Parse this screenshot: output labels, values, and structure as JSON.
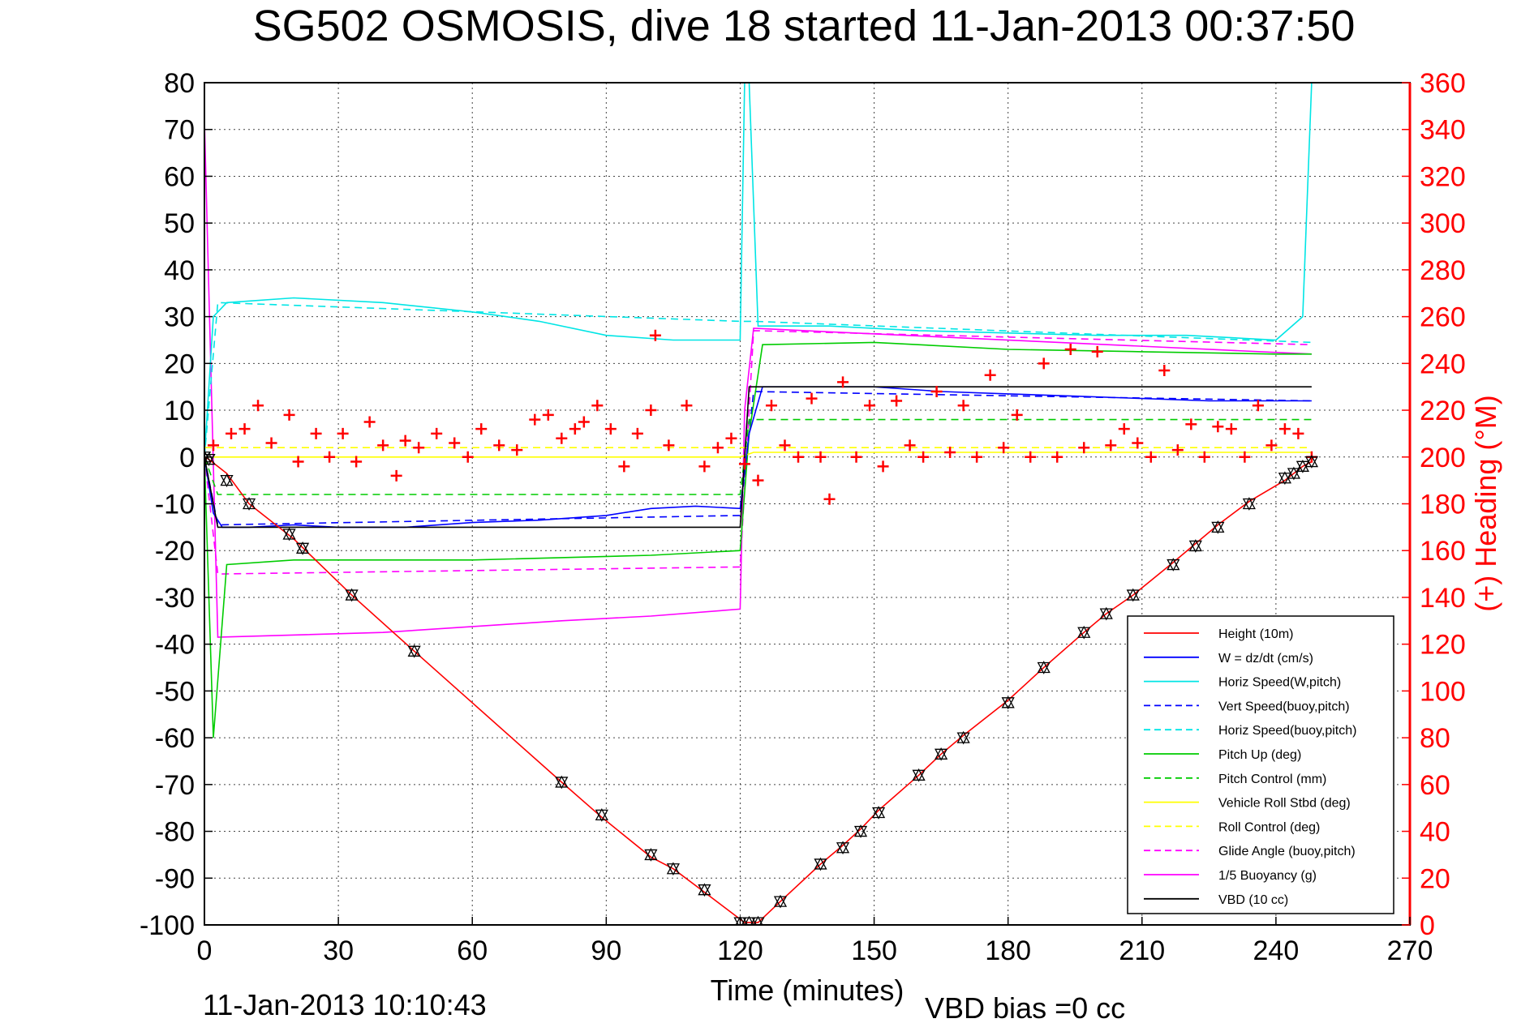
{
  "chart_data": {
    "type": "line",
    "title": "SG502 OSMOSIS, dive 18 started 11-Jan-2013 00:37:50",
    "xlabel": "Time (minutes)",
    "ylabel": "",
    "ylabel_right": "(+) Heading (°M)",
    "xlim": [
      0,
      270
    ],
    "ylim": [
      -100,
      80
    ],
    "ylim_right": [
      0,
      360
    ],
    "x_ticks": [
      "0",
      "30",
      "60",
      "90",
      "120",
      "150",
      "180",
      "210",
      "240",
      "270"
    ],
    "y_ticks": [
      "80",
      "70",
      "60",
      "50",
      "40",
      "30",
      "20",
      "10",
      "0",
      "-10",
      "-20",
      "-30",
      "-40",
      "-50",
      "-60",
      "-70",
      "-80",
      "-90",
      "-100"
    ],
    "y_ticks_right": [
      "360",
      "340",
      "320",
      "300",
      "280",
      "260",
      "240",
      "220",
      "200",
      "180",
      "160",
      "140",
      "120",
      "100",
      "80",
      "60",
      "40",
      "20",
      "0"
    ],
    "grid": true,
    "legend_position": "bottom-right",
    "footer_left": "11-Jan-2013 10:10:43",
    "footer_right": "VBD bias =0 cc",
    "series": [
      {
        "name": "Height (10m)",
        "color": "#ff0000",
        "style": "solid",
        "axis": "left",
        "x": [
          0,
          1,
          5,
          10,
          20,
          33,
          47,
          80,
          89,
          100,
          105,
          112,
          121,
          124,
          129,
          138,
          143,
          147,
          151,
          160,
          165,
          170,
          180,
          188,
          197,
          202,
          208,
          217,
          222,
          227,
          234,
          242,
          244,
          246,
          248
        ],
        "y": [
          0,
          -0.5,
          -3.5,
          -10,
          -17.5,
          -29.5,
          -41.5,
          -69.5,
          -77,
          -85.5,
          -88,
          -93,
          -99.5,
          -99.5,
          -95,
          -87,
          -83,
          -79.5,
          -75.5,
          -68,
          -63.5,
          -59.5,
          -52,
          -45,
          -37.5,
          -33.5,
          -29.5,
          -22.5,
          -18.5,
          -14.5,
          -9.5,
          -5,
          -3.5,
          -2,
          -1
        ]
      },
      {
        "name": "W = dz/dt (cm/s)",
        "color": "#0000ff",
        "style": "solid",
        "axis": "left",
        "x": [
          0,
          2,
          4,
          10,
          20,
          30,
          45,
          60,
          75,
          90,
          100,
          110,
          120,
          122,
          125,
          135,
          150,
          165,
          180,
          195,
          210,
          225,
          240,
          248
        ],
        "y": [
          0,
          -12,
          -15,
          -15,
          -14.5,
          -15,
          -15,
          -14,
          -13.5,
          -12.5,
          -11,
          -10.5,
          -11,
          5,
          15,
          15,
          15,
          14,
          13.5,
          13,
          12.5,
          12,
          12,
          12
        ]
      },
      {
        "name": "Horiz Speed(W,pitch)",
        "color": "#00e5e5",
        "style": "solid",
        "axis": "left",
        "x": [
          0,
          2,
          5,
          20,
          40,
          60,
          75,
          90,
          105,
          120,
          121,
          122,
          124,
          140,
          160,
          180,
          200,
          220,
          240,
          246,
          248
        ],
        "y": [
          0,
          30,
          33,
          34,
          33,
          31,
          29,
          26,
          25,
          25,
          80,
          80,
          28,
          28,
          27,
          26.5,
          26,
          26,
          25,
          30,
          80
        ]
      },
      {
        "name": "Vert Speed(buoy,pitch)",
        "color": "#0000ff",
        "style": "dashed",
        "axis": "left",
        "x": [
          0,
          3,
          120,
          123,
          248
        ],
        "y": [
          0,
          -14.5,
          -12.5,
          14,
          12
        ]
      },
      {
        "name": "Horiz Speed(buoy,pitch)",
        "color": "#00e5e5",
        "style": "dashed",
        "axis": "left",
        "x": [
          0,
          3,
          120,
          123,
          248
        ],
        "y": [
          0,
          33,
          29,
          29,
          24.5
        ]
      },
      {
        "name": "Pitch Up (deg)",
        "color": "#00cc00",
        "style": "solid",
        "axis": "left",
        "x": [
          0,
          2,
          5,
          20,
          60,
          100,
          120,
          122,
          125,
          150,
          180,
          210,
          240,
          248
        ],
        "y": [
          0,
          -60,
          -23,
          -22,
          -22,
          -21,
          -20,
          5,
          24,
          24.5,
          23,
          22.5,
          22,
          22
        ]
      },
      {
        "name": "Pitch Control (mm)",
        "color": "#00cc00",
        "style": "dashed",
        "axis": "left",
        "x": [
          0,
          3,
          120,
          122,
          248
        ],
        "y": [
          0,
          -8,
          -8,
          8,
          8
        ]
      },
      {
        "name": "Vehicle Roll Stbd (deg)",
        "color": "#ffff00",
        "style": "solid",
        "axis": "left",
        "x": [
          0,
          10,
          50,
          90,
          120,
          123,
          150,
          200,
          248
        ],
        "y": [
          0,
          0,
          0,
          0,
          0,
          1,
          1,
          1,
          1
        ]
      },
      {
        "name": "Roll Control (deg)",
        "color": "#ffff00",
        "style": "dashed",
        "axis": "left",
        "x": [
          0,
          248
        ],
        "y": [
          2,
          2
        ]
      },
      {
        "name": "Glide Angle (buoy,pitch)",
        "color": "#ff00ff",
        "style": "dashed",
        "axis": "left",
        "x": [
          0,
          3,
          120,
          123,
          248
        ],
        "y": [
          0,
          -25,
          -23.5,
          27,
          24
        ]
      },
      {
        "name": "1/5 Buoyancy (g)",
        "color": "#ff00ff",
        "style": "solid",
        "axis": "left",
        "x": [
          0,
          3,
          40,
          80,
          100,
          120,
          121,
          123,
          248
        ],
        "y": [
          72,
          -38.5,
          -37.5,
          -35,
          -34,
          -32.5,
          10,
          27.5,
          22
        ]
      },
      {
        "name": "VBD (10 cc)",
        "color": "#000000",
        "style": "solid",
        "axis": "left",
        "x": [
          0,
          3,
          120,
          122,
          248
        ],
        "y": [
          0,
          -15,
          -15,
          15,
          15
        ]
      },
      {
        "name": "Heading",
        "color": "#ff0000",
        "style": "plus-markers",
        "axis": "right",
        "x": [
          2,
          6,
          9,
          12,
          15,
          19,
          21,
          25,
          28,
          31,
          34,
          37,
          40,
          43,
          45,
          48,
          52,
          56,
          59,
          62,
          66,
          70,
          74,
          77,
          80,
          83,
          85,
          88,
          91,
          94,
          97,
          100,
          101,
          104,
          108,
          112,
          115,
          118,
          121,
          124,
          127,
          130,
          133,
          136,
          138,
          140,
          143,
          146,
          149,
          152,
          155,
          158,
          161,
          164,
          167,
          170,
          173,
          176,
          179,
          182,
          185,
          188,
          191,
          194,
          197,
          200,
          203,
          206,
          209,
          212,
          215,
          218,
          221,
          224,
          227,
          230,
          233,
          236,
          239,
          242,
          245,
          248
        ],
        "y": [
          205,
          210,
          212,
          222,
          206,
          218,
          198,
          210,
          200,
          210,
          198,
          215,
          205,
          192,
          207,
          204,
          210,
          206,
          200,
          212,
          205,
          203,
          216,
          218,
          208,
          212,
          215,
          222,
          212,
          196,
          210,
          220,
          252,
          205,
          222,
          196,
          204,
          208,
          197,
          190,
          222,
          205,
          200,
          225,
          200,
          182,
          232,
          200,
          222,
          196,
          224,
          205,
          200,
          228,
          202,
          222,
          200,
          235,
          204,
          218,
          200,
          240,
          200,
          246,
          204,
          245,
          205,
          212,
          206,
          200,
          237,
          203,
          214,
          200,
          213,
          212,
          200,
          222,
          205,
          212,
          210,
          200
        ]
      },
      {
        "name": "Height markers",
        "color": "#000000",
        "style": "triangle-markers",
        "axis": "left",
        "x": [
          0,
          1,
          5,
          10,
          19,
          22,
          33,
          47,
          80,
          89,
          100,
          105,
          112,
          120,
          122,
          124,
          129,
          138,
          143,
          147,
          151,
          160,
          165,
          170,
          180,
          188,
          197,
          202,
          208,
          217,
          222,
          227,
          234,
          242,
          244,
          246,
          248
        ],
        "y": [
          0,
          -0.5,
          -5,
          -10,
          -16.5,
          -19.5,
          -29.5,
          -41.5,
          -69.5,
          -76.5,
          -85,
          -88,
          -92.5,
          -99.5,
          -99.5,
          -99.5,
          -95,
          -87,
          -83.5,
          -80,
          -76,
          -68,
          -63.5,
          -60,
          -52.5,
          -45,
          -37.5,
          -33.5,
          -29.5,
          -23,
          -19,
          -15,
          -10,
          -4.5,
          -3.5,
          -2,
          -1
        ]
      }
    ]
  }
}
